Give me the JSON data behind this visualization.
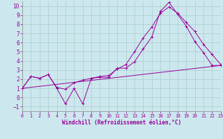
{
  "xlabel": "Windchill (Refroidissement éolien,°C)",
  "background_color": "#cce8ee",
  "grid_color": "#aacccc",
  "line_color": "#990099",
  "xlim": [
    0,
    23
  ],
  "ylim": [
    -1.5,
    10.5
  ],
  "yticks": [
    -1,
    0,
    1,
    2,
    3,
    4,
    5,
    6,
    7,
    8,
    9,
    10
  ],
  "xticks": [
    0,
    1,
    2,
    3,
    4,
    5,
    6,
    7,
    8,
    9,
    10,
    11,
    12,
    13,
    14,
    15,
    16,
    17,
    18,
    19,
    20,
    21,
    22,
    23
  ],
  "series1_x": [
    0,
    1,
    2,
    3,
    4,
    5,
    6,
    7,
    8,
    9,
    10,
    11,
    12,
    13,
    14,
    15,
    16,
    17,
    18,
    19,
    20,
    21,
    22,
    23
  ],
  "series1_y": [
    1.0,
    2.3,
    2.1,
    2.5,
    1.0,
    -0.7,
    1.0,
    -0.7,
    2.1,
    2.2,
    2.2,
    3.2,
    3.2,
    3.9,
    5.3,
    6.6,
    9.4,
    10.4,
    9.1,
    7.8,
    6.1,
    4.9,
    3.5,
    3.5
  ],
  "series2_x": [
    0,
    1,
    2,
    3,
    4,
    5,
    6,
    7,
    8,
    9,
    10,
    11,
    12,
    13,
    14,
    15,
    16,
    17,
    18,
    19,
    20,
    21,
    22,
    23
  ],
  "series2_y": [
    1.0,
    2.3,
    2.1,
    2.5,
    1.1,
    0.9,
    1.6,
    1.9,
    2.1,
    2.3,
    2.4,
    3.1,
    3.6,
    5.0,
    6.5,
    7.7,
    9.2,
    9.9,
    9.2,
    8.2,
    7.2,
    5.8,
    4.7,
    3.6
  ],
  "series3_x": [
    0,
    23
  ],
  "series3_y": [
    1.0,
    3.5
  ]
}
